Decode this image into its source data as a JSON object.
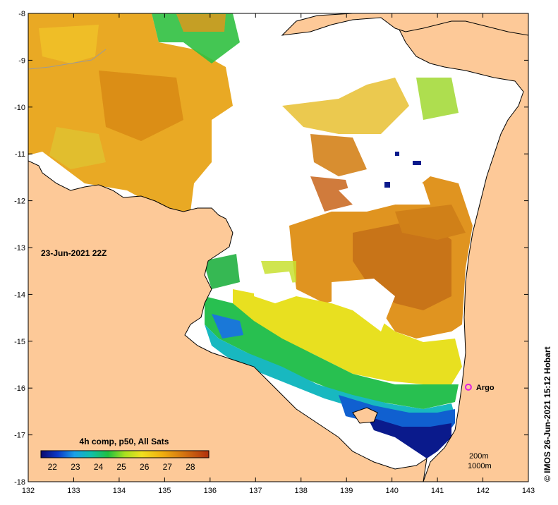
{
  "map": {
    "timestamp_label": "23-Jun-2021 22Z",
    "credit": "© IMOS 26-Jun-2021 15:12 Hobart",
    "lon_ticks": [
      "132",
      "133",
      "134",
      "135",
      "136",
      "137",
      "138",
      "139",
      "140",
      "141",
      "142",
      "143"
    ],
    "lat_ticks": [
      "-8",
      "-9",
      "-10",
      "-11",
      "-12",
      "-13",
      "-14",
      "-15",
      "-16",
      "-17",
      "-18"
    ],
    "colorbar": {
      "title": "4h comp, p50, All Sats",
      "ticks": [
        "22",
        "23",
        "24",
        "25",
        "26",
        "27",
        "28"
      ]
    },
    "argo": {
      "label": "Argo",
      "lon": 141.68,
      "lat": -15.98,
      "color": "#e020e0"
    },
    "contours": [
      "200m",
      "1000m"
    ],
    "colors": {
      "land": "#fdc998",
      "ocean_nodata": "#ffffff",
      "coast": "#000000",
      "bathy_contour": "#9a9a9a"
    }
  }
}
